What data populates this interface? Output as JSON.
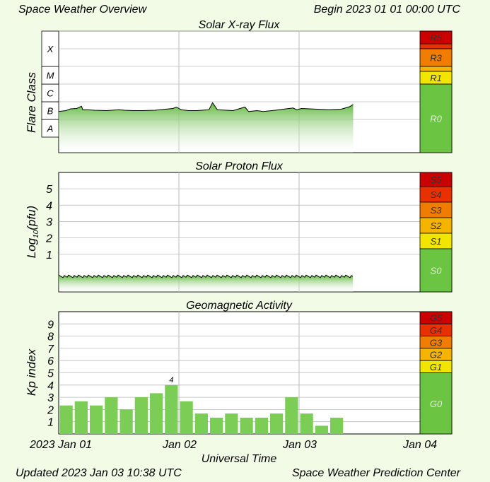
{
  "header": {
    "title": "Space Weather Overview",
    "begin": "Begin 2023 01 01 00:00 UTC"
  },
  "footer": {
    "updated": "Updated 2023 Jan 03 10:38 UTC",
    "center": "Space Weather Prediction Center",
    "xlabel": "Universal Time"
  },
  "x_ticks": [
    "2023 Jan 01",
    "Jan 02",
    "Jan 03",
    "Jan 04"
  ],
  "colors": {
    "background": "#f2fbe6",
    "bar_green": "#7ccd55",
    "level_0": "#6cc443",
    "level_1": "#f2e600",
    "level_2": "#f5b400",
    "level_3": "#f07c00",
    "level_4": "#e83000",
    "level_5": "#cc0000"
  },
  "chart_data": [
    {
      "type": "area",
      "title": "Solar X-ray Flux",
      "ylabel": "Flare Class",
      "y_classes": [
        "A",
        "B",
        "C",
        "M",
        "X"
      ],
      "scale_labels": [
        "R5",
        "R3",
        "R1",
        "R0"
      ],
      "x_days": [
        0,
        0.06,
        0.1,
        0.15,
        0.19,
        0.2,
        0.24,
        0.3,
        0.4,
        0.5,
        0.55,
        0.62,
        0.7,
        0.8,
        0.95,
        0.98,
        1.02,
        1.08,
        1.15,
        1.25,
        1.28,
        1.32,
        1.45,
        1.55,
        1.58,
        1.65,
        1.7,
        1.8,
        1.95,
        1.98,
        2.02,
        2.15,
        2.25,
        2.35,
        2.42,
        2.45
      ],
      "flare_class": [
        1.45,
        1.5,
        1.6,
        1.62,
        1.75,
        1.55,
        1.55,
        1.52,
        1.5,
        1.55,
        1.52,
        1.5,
        1.5,
        1.52,
        1.62,
        1.7,
        1.55,
        1.5,
        1.5,
        1.55,
        1.95,
        1.55,
        1.5,
        1.7,
        1.45,
        1.5,
        1.45,
        1.52,
        1.65,
        1.55,
        1.62,
        1.58,
        1.55,
        1.58,
        1.72,
        1.85
      ]
    },
    {
      "type": "area",
      "title": "Solar Proton Flux",
      "ylabel": "Log10(pfu)",
      "ylabel_main": "Log",
      "ylabel_sub": "10",
      "ylabel_unit": "(pfu)",
      "ylim": [
        -1.3,
        6
      ],
      "y_ticks": [
        1,
        2,
        3,
        4,
        5
      ],
      "scale_labels": [
        "S5",
        "S4",
        "S3",
        "S2",
        "S1",
        "S0"
      ],
      "x_days": [
        0,
        0.5,
        1,
        1.5,
        2,
        2.45
      ],
      "log_pfu": [
        -0.35,
        -0.35,
        -0.35,
        -0.35,
        -0.35,
        -0.35
      ]
    },
    {
      "type": "bar",
      "title": "Geomagnetic Activity",
      "ylabel": "Kp index",
      "ylim": [
        0,
        10
      ],
      "y_ticks": [
        1,
        2,
        3,
        4,
        5,
        6,
        7,
        8,
        9
      ],
      "scale_labels": [
        "G5",
        "G4",
        "G3",
        "G2",
        "G1",
        "G0"
      ],
      "bar_width_days": 0.125,
      "kp": [
        2.33,
        2.67,
        2.33,
        3,
        2,
        3,
        3.33,
        4,
        2.67,
        1.67,
        1.33,
        1.67,
        1.33,
        1.33,
        1.67,
        3,
        1.67,
        0.67,
        1.33
      ],
      "annotation": "4"
    }
  ]
}
